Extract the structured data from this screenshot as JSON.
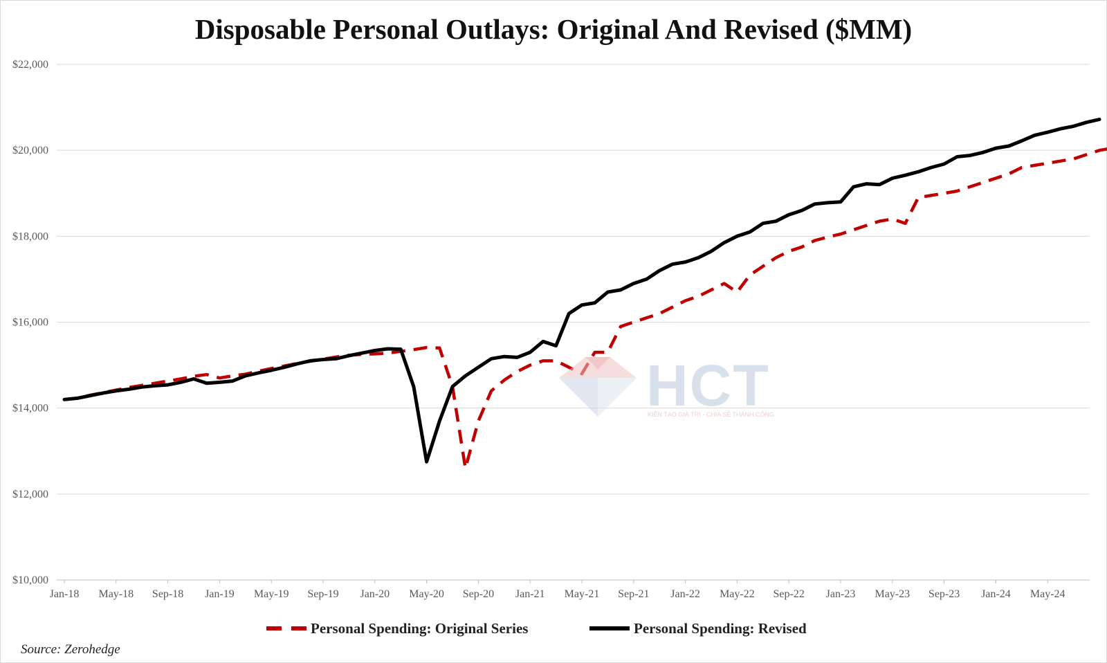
{
  "chart_data": {
    "type": "line",
    "title": "Disposable Personal Outlays: Original And Revised ($MM)",
    "xlabel": "",
    "ylabel": "",
    "ylim": [
      10000,
      22000
    ],
    "yticks": [
      "$10,000",
      "$12,000",
      "$14,000",
      "$16,000",
      "$18,000",
      "$20,000",
      "$22,000"
    ],
    "xticks": [
      "Jan-18",
      "May-18",
      "Sep-18",
      "Jan-19",
      "May-19",
      "Sep-19",
      "Jan-20",
      "May-20",
      "Sep-20",
      "Jan-21",
      "May-21",
      "Sep-21",
      "Jan-22",
      "May-22",
      "Sep-22",
      "Jan-23",
      "May-23",
      "Sep-23",
      "Jan-24",
      "May-24"
    ],
    "x_start": "Jan-18",
    "x_end": "Aug-24",
    "grid": true,
    "legend_position": "bottom",
    "series": [
      {
        "name": "Personal Spending: Original Series",
        "color": "#c00000",
        "style": "dashed",
        "values": [
          14200,
          14230,
          14300,
          14360,
          14420,
          14480,
          14530,
          14580,
          14630,
          14680,
          14740,
          14780,
          14700,
          14750,
          14790,
          14860,
          14920,
          14980,
          15040,
          15090,
          15140,
          15190,
          15230,
          15250,
          15260,
          15280,
          15320,
          15360,
          15410,
          15400,
          14500,
          12600,
          13700,
          14400,
          14650,
          14850,
          15000,
          15100,
          15100,
          14950,
          14800,
          15300,
          15300,
          15900,
          16000,
          16100,
          16200,
          16350,
          16500,
          16600,
          16750,
          16900,
          16700,
          17100,
          17300,
          17500,
          17650,
          17750,
          17900,
          17980,
          18050,
          18150,
          18250,
          18350,
          18400,
          18300,
          18900,
          18950,
          19000,
          19050,
          19150,
          19250,
          19350,
          19450,
          19600,
          19650,
          19700,
          19750,
          19800,
          19900,
          20000,
          20050,
          20100,
          20200,
          20300,
          20420
        ]
      },
      {
        "name": "Personal Spending: Revised",
        "color": "#000000",
        "style": "solid",
        "values": [
          14200,
          14230,
          14290,
          14350,
          14400,
          14440,
          14490,
          14520,
          14540,
          14600,
          14680,
          14580,
          14600,
          14630,
          14750,
          14820,
          14880,
          14950,
          15030,
          15100,
          15130,
          15150,
          15220,
          15280,
          15340,
          15380,
          15370,
          14500,
          12750,
          13700,
          14500,
          14750,
          14950,
          15150,
          15200,
          15180,
          15300,
          15550,
          15450,
          16200,
          16400,
          16450,
          16700,
          16750,
          16900,
          17000,
          17200,
          17350,
          17400,
          17500,
          17650,
          17850,
          18000,
          18100,
          18300,
          18350,
          18500,
          18600,
          18750,
          18780,
          18800,
          19150,
          19220,
          19200,
          19350,
          19420,
          19500,
          19600,
          19680,
          19850,
          19880,
          19950,
          20050,
          20100,
          20220,
          20350,
          20420,
          20500,
          20560,
          20650,
          20720
        ]
      }
    ]
  },
  "source": "Source: Zerohedge",
  "watermark": {
    "text": "HCT",
    "tagline": "KIẾN TẠO GIÁ TRỊ - CHIA SẺ THÀNH CÔNG"
  }
}
